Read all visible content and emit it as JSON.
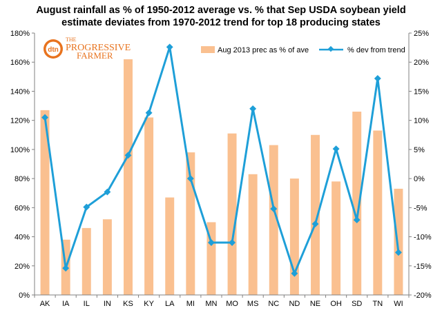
{
  "title_line1": "August rainfall as %  of 1950-2012 average vs. % that Sep USDA soybean yield",
  "title_line2": "estimate deviates from 1970-2012 trend for top 18 producing states",
  "logo": {
    "brand": "dtn",
    "line1": "THE",
    "line2": "PROGRESSIVE",
    "line3": "FARMER"
  },
  "colors": {
    "bar": "#FAC090",
    "line": "#1E9FD8",
    "axis": "#808080"
  },
  "chart_data": {
    "type": "bar+line",
    "categories": [
      "AK",
      "IA",
      "IL",
      "IN",
      "KS",
      "KY",
      "LA",
      "MI",
      "MN",
      "MO",
      "MS",
      "NC",
      "ND",
      "NE",
      "OH",
      "SD",
      "TN",
      "WI"
    ],
    "series": [
      {
        "name": "Aug 2013 prec as % of ave",
        "type": "bar",
        "axis": "left",
        "values": [
          127,
          38,
          46,
          52,
          162,
          122,
          67,
          98,
          50,
          111,
          83,
          103,
          80,
          110,
          78,
          126,
          113,
          73
        ]
      },
      {
        "name": "% dev from trend",
        "type": "line",
        "axis": "right",
        "values": [
          10.5,
          -15.4,
          -4.9,
          -2.3,
          4.0,
          11.3,
          22.6,
          0.0,
          -11.0,
          -11.0,
          12.0,
          -5.2,
          -16.3,
          -7.8,
          5.1,
          -7.1,
          17.2,
          -12.7
        ]
      }
    ],
    "y_left": {
      "min": 0,
      "max": 180,
      "step": 20,
      "ticks": [
        "0%",
        "20%",
        "40%",
        "60%",
        "80%",
        "100%",
        "120%",
        "140%",
        "160%",
        "180%"
      ]
    },
    "y_right": {
      "min": -20,
      "max": 25,
      "step": 5,
      "ticks": [
        "-20%",
        "-15%",
        "-10%",
        "-5%",
        "0%",
        "5%",
        "10%",
        "15%",
        "20%",
        "25%"
      ]
    },
    "legend_position": "top-right",
    "grid": false
  }
}
